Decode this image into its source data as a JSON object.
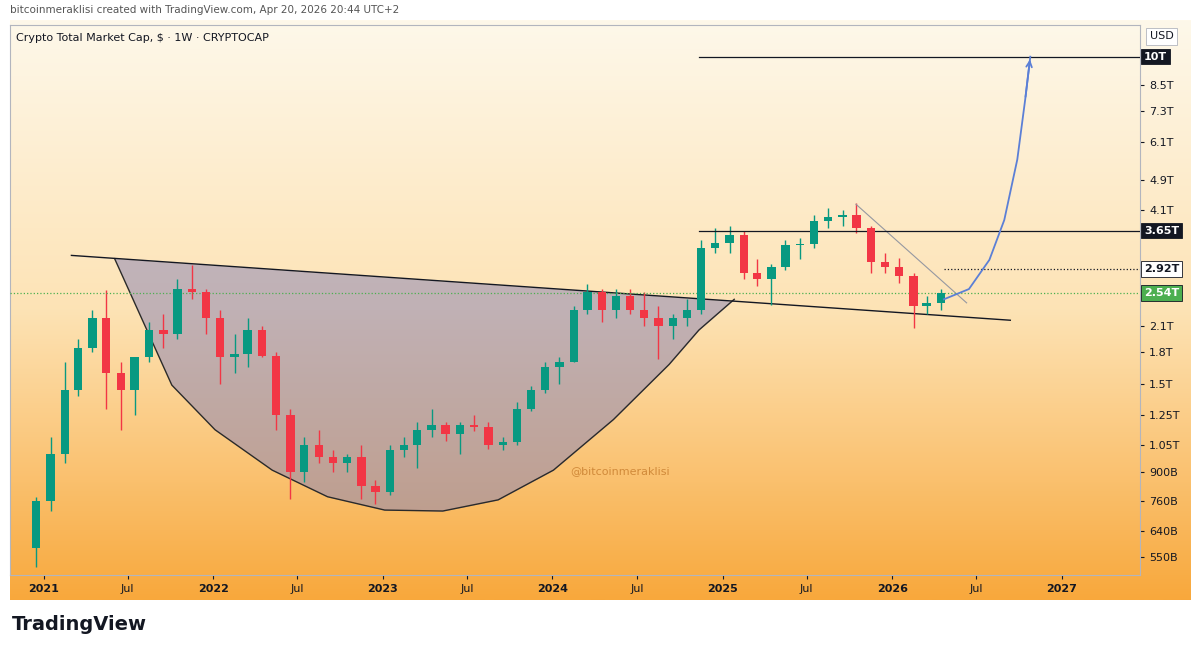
{
  "header": "bitcoinmeraklisi created with TradingView.com, Apr 20, 2026 20:44 UTC+2",
  "footer": "TradingView",
  "chart_data": {
    "type": "candlestick",
    "title": "Crypto Total Market Cap, $ · 1W · CRYPTOCAP",
    "watermark": "@bitcoinmeraklisi",
    "currency": "USD",
    "log": "y",
    "grid": false,
    "x": [
      "2020-12",
      "2021-01",
      "2021-02",
      "2021-03",
      "2021-04",
      "2021-05",
      "2021-06",
      "2021-07",
      "2021-08",
      "2021-09",
      "2021-10",
      "2021-11",
      "2021-12",
      "2022-01",
      "2022-02",
      "2022-03",
      "2022-04",
      "2022-05",
      "2022-06",
      "2022-07",
      "2022-08",
      "2022-09",
      "2022-10",
      "2022-11",
      "2022-12",
      "2023-01",
      "2023-02",
      "2023-03",
      "2023-04",
      "2023-05",
      "2023-06",
      "2023-07",
      "2023-08",
      "2023-09",
      "2023-10",
      "2023-11",
      "2023-12",
      "2024-01",
      "2024-02",
      "2024-03",
      "2024-04",
      "2024-05",
      "2024-06",
      "2024-07",
      "2024-08",
      "2024-09",
      "2024-10",
      "2024-11",
      "2024-12",
      "2025-01",
      "2025-02",
      "2025-03",
      "2025-04",
      "2025-05",
      "2025-06",
      "2025-07",
      "2025-08",
      "2025-09",
      "2025-10",
      "2025-11",
      "2025-12",
      "2026-01",
      "2026-02",
      "2026-03",
      "2026-04"
    ],
    "open": [
      580000000000.0,
      760000000000.0,
      1000000000000.0,
      1450000000000.0,
      1850000000000.0,
      2200000000000.0,
      1600000000000.0,
      1450000000000.0,
      1750000000000.0,
      2050000000000.0,
      2000000000000.0,
      2600000000000.0,
      2550000000000.0,
      2200000000000.0,
      1750000000000.0,
      1780000000000.0,
      2050000000000.0,
      1760000000000.0,
      1250000000000.0,
      900000000000.0,
      1050000000000.0,
      980000000000.0,
      950000000000.0,
      980000000000.0,
      830000000000.0,
      800000000000.0,
      1020000000000.0,
      1050000000000.0,
      1150000000000.0,
      1180000000000.0,
      1120000000000.0,
      1180000000000.0,
      1170000000000.0,
      1050000000000.0,
      1070000000000.0,
      1300000000000.0,
      1450000000000.0,
      1650000000000.0,
      1700000000000.0,
      2300000000000.0,
      2550000000000.0,
      2300000000000.0,
      2500000000000.0,
      2300000000000.0,
      2200000000000.0,
      2100000000000.0,
      2200000000000.0,
      2300000000000.0,
      3300000000000.0,
      3400000000000.0,
      3550000000000.0,
      2850000000000.0,
      2750000000000.0,
      2950000000000.0,
      3350000000000.0,
      3380000000000.0,
      3850000000000.0,
      3950000000000.0,
      4000000000000.0,
      3700000000000.0,
      3050000000000.0,
      2950000000000.0,
      2800000000000.0,
      2350000000000.0,
      2400000000000.0
    ],
    "high": [
      780000000000.0,
      1100000000000.0,
      1700000000000.0,
      1950000000000.0,
      2300000000000.0,
      2590000000000.0,
      1700000000000.0,
      1750000000000.0,
      2150000000000.0,
      2250000000000.0,
      2750000000000.0,
      2990000000000.0,
      2600000000000.0,
      2300000000000.0,
      2000000000000.0,
      2200000000000.0,
      2100000000000.0,
      1800000000000.0,
      1300000000000.0,
      1100000000000.0,
      1150000000000.0,
      1020000000000.0,
      1000000000000.0,
      1050000000000.0,
      860000000000.0,
      1050000000000.0,
      1100000000000.0,
      1200000000000.0,
      1300000000000.0,
      1200000000000.0,
      1200000000000.0,
      1250000000000.0,
      1200000000000.0,
      1100000000000.0,
      1350000000000.0,
      1480000000000.0,
      1700000000000.0,
      1750000000000.0,
      2350000000000.0,
      2670000000000.0,
      2600000000000.0,
      2600000000000.0,
      2600000000000.0,
      2550000000000.0,
      2350000000000.0,
      2250000000000.0,
      2450000000000.0,
      3450000000000.0,
      3700000000000.0,
      3750000000000.0,
      3650000000000.0,
      3100000000000.0,
      3000000000000.0,
      3450000000000.0,
      3500000000000.0,
      4000000000000.0,
      4150000000000.0,
      4100000000000.0,
      4280000000000.0,
      3750000000000.0,
      3200000000000.0,
      3120000000000.0,
      2850000000000.0,
      2500000000000.0,
      2600000000000.0
    ],
    "low": [
      520000000000.0,
      720000000000.0,
      950000000000.0,
      1400000000000.0,
      1800000000000.0,
      1300000000000.0,
      1150000000000.0,
      1250000000000.0,
      1700000000000.0,
      1850000000000.0,
      1950000000000.0,
      2450000000000.0,
      2000000000000.0,
      1500000000000.0,
      1600000000000.0,
      1650000000000.0,
      1750000000000.0,
      1150000000000.0,
      770000000000.0,
      850000000000.0,
      950000000000.0,
      900000000000.0,
      900000000000.0,
      770000000000.0,
      750000000000.0,
      790000000000.0,
      980000000000.0,
      920000000000.0,
      1100000000000.0,
      1080000000000.0,
      1000000000000.0,
      1140000000000.0,
      1030000000000.0,
      1020000000000.0,
      1050000000000.0,
      1280000000000.0,
      1420000000000.0,
      1500000000000.0,
      1700000000000.0,
      2250000000000.0,
      2150000000000.0,
      2200000000000.0,
      2250000000000.0,
      2100000000000.0,
      1730000000000.0,
      1950000000000.0,
      2100000000000.0,
      2250000000000.0,
      3200000000000.0,
      3200000000000.0,
      2750000000000.0,
      2650000000000.0,
      2370000000000.0,
      2900000000000.0,
      3100000000000.0,
      3300000000000.0,
      3700000000000.0,
      3750000000000.0,
      3600000000000.0,
      2850000000000.0,
      2850000000000.0,
      2700000000000.0,
      2080000000000.0,
      2250000000000.0,
      2300000000000.0
    ],
    "close": [
      760000000000.0,
      1000000000000.0,
      1450000000000.0,
      1850000000000.0,
      2200000000000.0,
      1600000000000.0,
      1450000000000.0,
      1750000000000.0,
      2050000000000.0,
      2000000000000.0,
      2600000000000.0,
      2550000000000.0,
      2200000000000.0,
      1750000000000.0,
      1780000000000.0,
      2050000000000.0,
      1760000000000.0,
      1250000000000.0,
      900000000000.0,
      1050000000000.0,
      980000000000.0,
      950000000000.0,
      980000000000.0,
      830000000000.0,
      800000000000.0,
      1020000000000.0,
      1050000000000.0,
      1150000000000.0,
      1180000000000.0,
      1120000000000.0,
      1180000000000.0,
      1170000000000.0,
      1050000000000.0,
      1070000000000.0,
      1300000000000.0,
      1450000000000.0,
      1650000000000.0,
      1700000000000.0,
      2300000000000.0,
      2550000000000.0,
      2300000000000.0,
      2500000000000.0,
      2300000000000.0,
      2200000000000.0,
      2100000000000.0,
      2200000000000.0,
      2300000000000.0,
      3300000000000.0,
      3400000000000.0,
      3550000000000.0,
      2850000000000.0,
      2750000000000.0,
      2950000000000.0,
      3350000000000.0,
      3380000000000.0,
      3850000000000.0,
      3950000000000.0,
      4000000000000.0,
      3700000000000.0,
      3050000000000.0,
      2950000000000.0,
      2800000000000.0,
      2350000000000.0,
      2400000000000.0,
      2540000000000.0
    ],
    "xlim": [
      "2020-10-20",
      "2027-06-18"
    ],
    "ylim": [
      495000000000.0,
      12000000000000.0
    ],
    "xticks": [
      {
        "value": "2021-01",
        "label": "2021"
      },
      {
        "value": "2021-07",
        "label": "Jul"
      },
      {
        "value": "2022-01",
        "label": "2022"
      },
      {
        "value": "2022-07",
        "label": "Jul"
      },
      {
        "value": "2023-01",
        "label": "2023"
      },
      {
        "value": "2023-07",
        "label": "Jul"
      },
      {
        "value": "2024-01",
        "label": "2024"
      },
      {
        "value": "2024-07",
        "label": "Jul"
      },
      {
        "value": "2025-01",
        "label": "2025"
      },
      {
        "value": "2025-07",
        "label": "Jul"
      },
      {
        "value": "2026-01",
        "label": "2026"
      },
      {
        "value": "2026-07",
        "label": "Jul"
      },
      {
        "value": "2027-01",
        "label": "2027"
      }
    ],
    "yticks": [
      {
        "value": 550000000000.0,
        "label": "550B"
      },
      {
        "value": 640000000000.0,
        "label": "640B"
      },
      {
        "value": 760000000000.0,
        "label": "760B"
      },
      {
        "value": 900000000000.0,
        "label": "900B"
      },
      {
        "value": 1050000000000.0,
        "label": "1.05T"
      },
      {
        "value": 1250000000000.0,
        "label": "1.25T"
      },
      {
        "value": 1500000000000.0,
        "label": "1.5T"
      },
      {
        "value": 1800000000000.0,
        "label": "1.8T"
      },
      {
        "value": 2100000000000.0,
        "label": "2.1T"
      },
      {
        "value": 4100000000000.0,
        "label": "4.1T"
      },
      {
        "value": 4900000000000.0,
        "label": "4.9T"
      },
      {
        "value": 6100000000000.0,
        "label": "6.1T"
      },
      {
        "value": 7300000000000.0,
        "label": "7.3T"
      },
      {
        "value": 8500000000000.0,
        "label": "8.5T"
      }
    ],
    "levels": [
      {
        "value": 10000000000000.0,
        "label": "10T",
        "color": "#131722",
        "line_style": "solid",
        "x_start": "2024-11-11"
      },
      {
        "value": 3650000000000.0,
        "label": "3.65T",
        "color": "#131722",
        "line_style": "solid",
        "x_start": "2024-11-11"
      },
      {
        "value": 2920000000000.0,
        "label": "2.92T",
        "color": "#ffffff",
        "line_style": "dotted",
        "x_start": "2026-04-22"
      },
      {
        "value": 2540000000000.0,
        "label": "2.54T",
        "color": "#4caf50",
        "line_style": "dotted"
      }
    ],
    "neckline": {
      "x": [
        "2021-03-02",
        "2026-09-12"
      ],
      "values": [
        3160000000000.0,
        2170000000000.0
      ]
    },
    "cup": {
      "x": [
        "2021-06-03",
        "2021-10-04",
        "2022-01-05",
        "2022-05-08",
        "2022-09-04",
        "2023-01-05",
        "2023-05-10",
        "2023-09-06",
        "2024-01-03",
        "2024-05-11",
        "2024-09-08",
        "2024-11-11",
        "2025-01-26"
      ],
      "values": [
        3100000000000.0,
        1490000000000.0,
        1150000000000.0,
        910000000000.0,
        780000000000.0,
        722000000000.0,
        718000000000.0,
        766000000000.0,
        910000000000.0,
        1220000000000.0,
        1680000000000.0,
        2050000000000.0,
        2450000000000.0
      ]
    },
    "trendline": {
      "x": [
        "2025-10-15",
        "2026-06-10"
      ],
      "values": [
        4250000000000.0,
        2400000000000.0
      ]
    },
    "projection": {
      "x": [
        "2026-04-22",
        "2026-06-15",
        "2026-07-29",
        "2026-08-30",
        "2026-09-27",
        "2026-10-14",
        "2026-10-25"
      ],
      "values": [
        2450000000000.0,
        2600000000000.0,
        3080000000000.0,
        3880000000000.0,
        5510000000000.0,
        7800000000000.0,
        10000000000000.0
      ],
      "color": "#5b7fd6"
    }
  }
}
